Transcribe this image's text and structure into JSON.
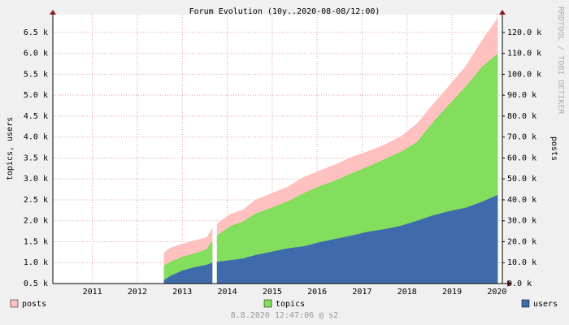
{
  "chart_data": {
    "type": "area",
    "title": "Forum Evolution (10y..2020-08-08/12:00)",
    "y_label": "topics, users",
    "y2_label": "posts",
    "watermark": "RRDTOOL / TOBI OETIKER",
    "footer": "8.8.2020 12:47:06 @ s2",
    "x": [
      2013.09,
      2013.23,
      2013.5,
      2013.77,
      2014.04,
      2014.17,
      2014.22,
      2014.27,
      2014.58,
      2014.85,
      2015.12,
      2015.48,
      2015.84,
      2016.2,
      2016.56,
      2016.92,
      2017.28,
      2017.64,
      2018.0,
      2018.36,
      2018.72,
      2019.08,
      2019.44,
      2019.8,
      2020.16,
      2020.52
    ],
    "series": [
      {
        "name": "posts",
        "color": "#ffc0c0",
        "axis": "y2",
        "values": [
          14800,
          17100,
          19000,
          20600,
          22100,
          26800,
          null,
          28700,
          33400,
          35300,
          40000,
          43100,
          46200,
          50900,
          54000,
          57100,
          60600,
          63300,
          66400,
          70300,
          76500,
          85800,
          94700,
          103700,
          116100,
          127000
        ]
      },
      {
        "name": "topics",
        "color": "#82de5c",
        "values": [
          930,
          1020,
          1140,
          1220,
          1320,
          1530,
          null,
          1650,
          1880,
          1980,
          2170,
          2310,
          2460,
          2660,
          2830,
          2970,
          3140,
          3300,
          3470,
          3650,
          3880,
          4360,
          4790,
          5200,
          5670,
          6000
        ]
      },
      {
        "name": "users",
        "color": "#3f6bad",
        "values": [
          580,
          680,
          810,
          890,
          950,
          1000,
          null,
          1020,
          1060,
          1100,
          1180,
          1260,
          1340,
          1390,
          1490,
          1570,
          1650,
          1740,
          1800,
          1880,
          2000,
          2130,
          2230,
          2310,
          2450,
          2620
        ]
      }
    ],
    "xlim": [
      2010.62,
      2020.62
    ],
    "xticks": [
      {
        "value": 2011.5,
        "label": "2011"
      },
      {
        "value": 2012.5,
        "label": "2012"
      },
      {
        "value": 2013.5,
        "label": "2013"
      },
      {
        "value": 2014.5,
        "label": "2014"
      },
      {
        "value": 2015.5,
        "label": "2015"
      },
      {
        "value": 2016.5,
        "label": "2016"
      },
      {
        "value": 2017.5,
        "label": "2017"
      },
      {
        "value": 2018.5,
        "label": "2018"
      },
      {
        "value": 2019.5,
        "label": "2019"
      },
      {
        "value": 2020.5,
        "label": "2020"
      }
    ],
    "ylim": [
      500,
      6925
    ],
    "yticks": [
      {
        "value": 500,
        "label": "0.5 k"
      },
      {
        "value": 1000,
        "label": "1.0 k"
      },
      {
        "value": 1500,
        "label": "1.5 k"
      },
      {
        "value": 2000,
        "label": "2.0 k"
      },
      {
        "value": 2500,
        "label": "2.5 k"
      },
      {
        "value": 3000,
        "label": "3.0 k"
      },
      {
        "value": 3500,
        "label": "3.5 k"
      },
      {
        "value": 4000,
        "label": "4.0 k"
      },
      {
        "value": 4500,
        "label": "4.5 k"
      },
      {
        "value": 5000,
        "label": "5.0 k"
      },
      {
        "value": 5500,
        "label": "5.5 k"
      },
      {
        "value": 6000,
        "label": "6.0 k"
      },
      {
        "value": 6500,
        "label": "6.5 k"
      }
    ],
    "y2lim": [
      0,
      128500
    ],
    "y2ticks": [
      {
        "value": 0,
        "label": "0.0 k"
      },
      {
        "value": 10000,
        "label": "10.0 k"
      },
      {
        "value": 20000,
        "label": "20.0 k"
      },
      {
        "value": 30000,
        "label": "30.0 k"
      },
      {
        "value": 40000,
        "label": "40.0 k"
      },
      {
        "value": 50000,
        "label": "50.0 k"
      },
      {
        "value": 60000,
        "label": "60.0 k"
      },
      {
        "value": 70000,
        "label": "70.0 k"
      },
      {
        "value": 80000,
        "label": "80.0 k"
      },
      {
        "value": 90000,
        "label": "90.0 k"
      },
      {
        "value": 100000,
        "label": "100.0 k"
      },
      {
        "value": 110000,
        "label": "110.0 k"
      },
      {
        "value": 120000,
        "label": "120.0 k"
      }
    ],
    "grid": true
  }
}
